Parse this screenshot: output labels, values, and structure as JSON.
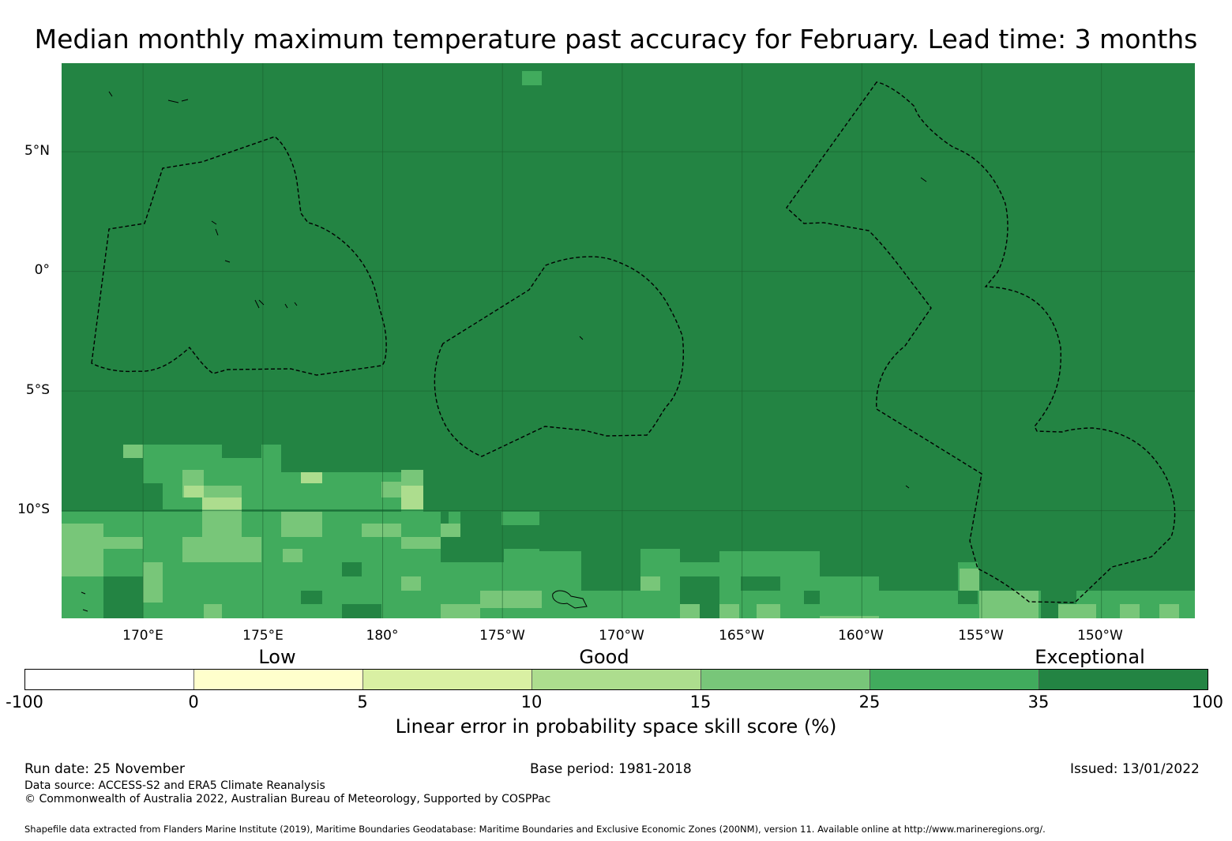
{
  "title": "Median monthly maximum temperature past accuracy for February. Lead time: 3 months",
  "map": {
    "lon_range": [
      166.6,
      213.9
    ],
    "lat_range": [
      -14.5,
      8.7
    ],
    "lat_ticks": [
      {
        "lat": 5,
        "label": "5°N"
      },
      {
        "lat": 0,
        "label": "0°"
      },
      {
        "lat": -5,
        "label": "5°S"
      },
      {
        "lat": -10,
        "label": "10°S"
      }
    ],
    "lon_ticks": [
      {
        "lon": 170,
        "label": "170°E"
      },
      {
        "lon": 175,
        "label": "175°E"
      },
      {
        "lon": 180,
        "label": "180°"
      },
      {
        "lon": 185,
        "label": "175°W"
      },
      {
        "lon": 190,
        "label": "170°W"
      },
      {
        "lon": 195,
        "label": "165°W"
      },
      {
        "lon": 200,
        "label": "160°W"
      },
      {
        "lon": 205,
        "label": "155°W"
      },
      {
        "lon": 210,
        "label": "150°W"
      }
    ]
  },
  "colorbar": {
    "categories": [
      {
        "label": "Low",
        "at": 5
      },
      {
        "label": "Good",
        "at": 15
      },
      {
        "label": "Exceptional",
        "at": 35
      }
    ],
    "bins": [
      {
        "from": -100,
        "to": 0,
        "color": "#ffffff"
      },
      {
        "from": 0,
        "to": 5,
        "color": "#ffffcc"
      },
      {
        "from": 5,
        "to": 10,
        "color": "#d9f0a3"
      },
      {
        "from": 10,
        "to": 15,
        "color": "#addd8e"
      },
      {
        "from": 15,
        "to": 25,
        "color": "#78c679"
      },
      {
        "from": 25,
        "to": 35,
        "color": "#41ab5d"
      },
      {
        "from": 35,
        "to": 100,
        "color": "#238443"
      }
    ],
    "tick_labels": [
      "-100",
      "0",
      "5",
      "10",
      "15",
      "25",
      "35",
      "100"
    ],
    "label": "Linear error in probability space skill score (%)"
  },
  "footer": {
    "run_date": "Run date: 25 November",
    "base_period": "Base period: 1981-2018",
    "issued": "Issued: 13/01/2022",
    "data_source": "Data source: ACCESS-S2 and ERA5 Climate Reanalysis",
    "copyright": "© Commonwealth of Australia 2022, Australian Bureau of Meteorology, Supported by COSPPac",
    "shapefile": "Shapefile data extracted from Flanders Marine Institute (2019), Maritime Boundaries Geodatabase: Maritime Boundaries and Exclusive Economic Zones (200NM), version 11. Available online at http://www.marineregions.org/."
  }
}
